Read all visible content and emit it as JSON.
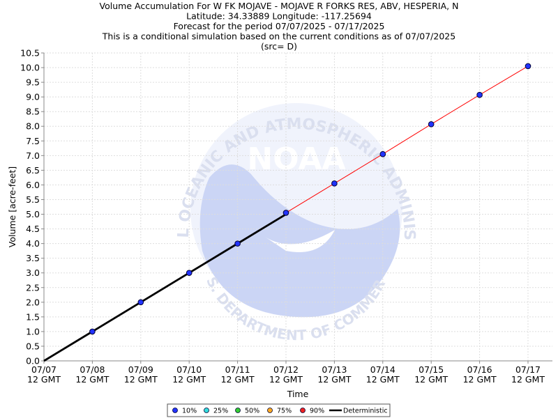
{
  "chart_data": {
    "type": "line",
    "title_lines": [
      "Volume Accumulation For W FK MOJAVE - MOJAVE R FORKS RES, ABV, HESPERIA, N",
      "Latitude: 34.33889 Longitude: -117.25694",
      "Forecast for the period 07/07/2025 - 07/17/2025",
      "This is a conditional simulation based on the current conditions as of 07/07/2025",
      "(src= D)"
    ],
    "xlabel": "Time",
    "ylabel": "Volume [acre-feet]",
    "ylim": [
      0,
      10.5
    ],
    "ytick_step": 0.5,
    "grid": true,
    "x_categories": [
      [
        "07/07",
        "12 GMT"
      ],
      [
        "07/08",
        "12 GMT"
      ],
      [
        "07/09",
        "12 GMT"
      ],
      [
        "07/10",
        "12 GMT"
      ],
      [
        "07/11",
        "12 GMT"
      ],
      [
        "07/12",
        "12 GMT"
      ],
      [
        "07/13",
        "12 GMT"
      ],
      [
        "07/14",
        "12 GMT"
      ],
      [
        "07/15",
        "12 GMT"
      ],
      [
        "07/16",
        "12 GMT"
      ],
      [
        "07/17",
        "12 GMT"
      ]
    ],
    "series": [
      {
        "name": "Deterministic",
        "color": "#000000",
        "points": [
          [
            0,
            0
          ],
          [
            1,
            1
          ],
          [
            2,
            2
          ],
          [
            3,
            3
          ],
          [
            4,
            4
          ],
          [
            5,
            5
          ]
        ]
      },
      {
        "name": "10%",
        "color": "#2233ff",
        "marker": "circle",
        "points": [
          [
            1,
            1.0
          ],
          [
            2,
            2.0
          ],
          [
            3,
            3.0
          ],
          [
            4,
            4.0
          ],
          [
            5,
            5.05
          ],
          [
            6,
            6.05
          ],
          [
            7,
            7.05
          ],
          [
            8,
            8.07
          ],
          [
            9,
            9.07
          ],
          [
            10,
            10.05
          ]
        ]
      },
      {
        "name": "90%",
        "color": "#ff0000",
        "points": [
          [
            5,
            5.05
          ],
          [
            6,
            6.05
          ],
          [
            7,
            7.05
          ],
          [
            8,
            8.07
          ],
          [
            9,
            9.07
          ],
          [
            10,
            10.05
          ]
        ]
      }
    ],
    "legend": {
      "placement": "bottom-center",
      "items": [
        {
          "label": "10%",
          "color": "#2233ff",
          "kind": "dot"
        },
        {
          "label": "25%",
          "color": "#33dddd",
          "kind": "dot"
        },
        {
          "label": "50%",
          "color": "#33cc33",
          "kind": "dot"
        },
        {
          "label": "75%",
          "color": "#ffaa22",
          "kind": "dot"
        },
        {
          "label": "90%",
          "color": "#ee2222",
          "kind": "dot"
        },
        {
          "label": "Deterministic",
          "color": "#000000",
          "kind": "line"
        }
      ]
    },
    "watermark": {
      "arc_text": "NATIONAL OCEANIC AND ATMOSPHERIC ADMINISTRATION",
      "center_text": "NOAA",
      "bottom_text": "U.S. DEPARTMENT OF COMMERCE"
    }
  }
}
